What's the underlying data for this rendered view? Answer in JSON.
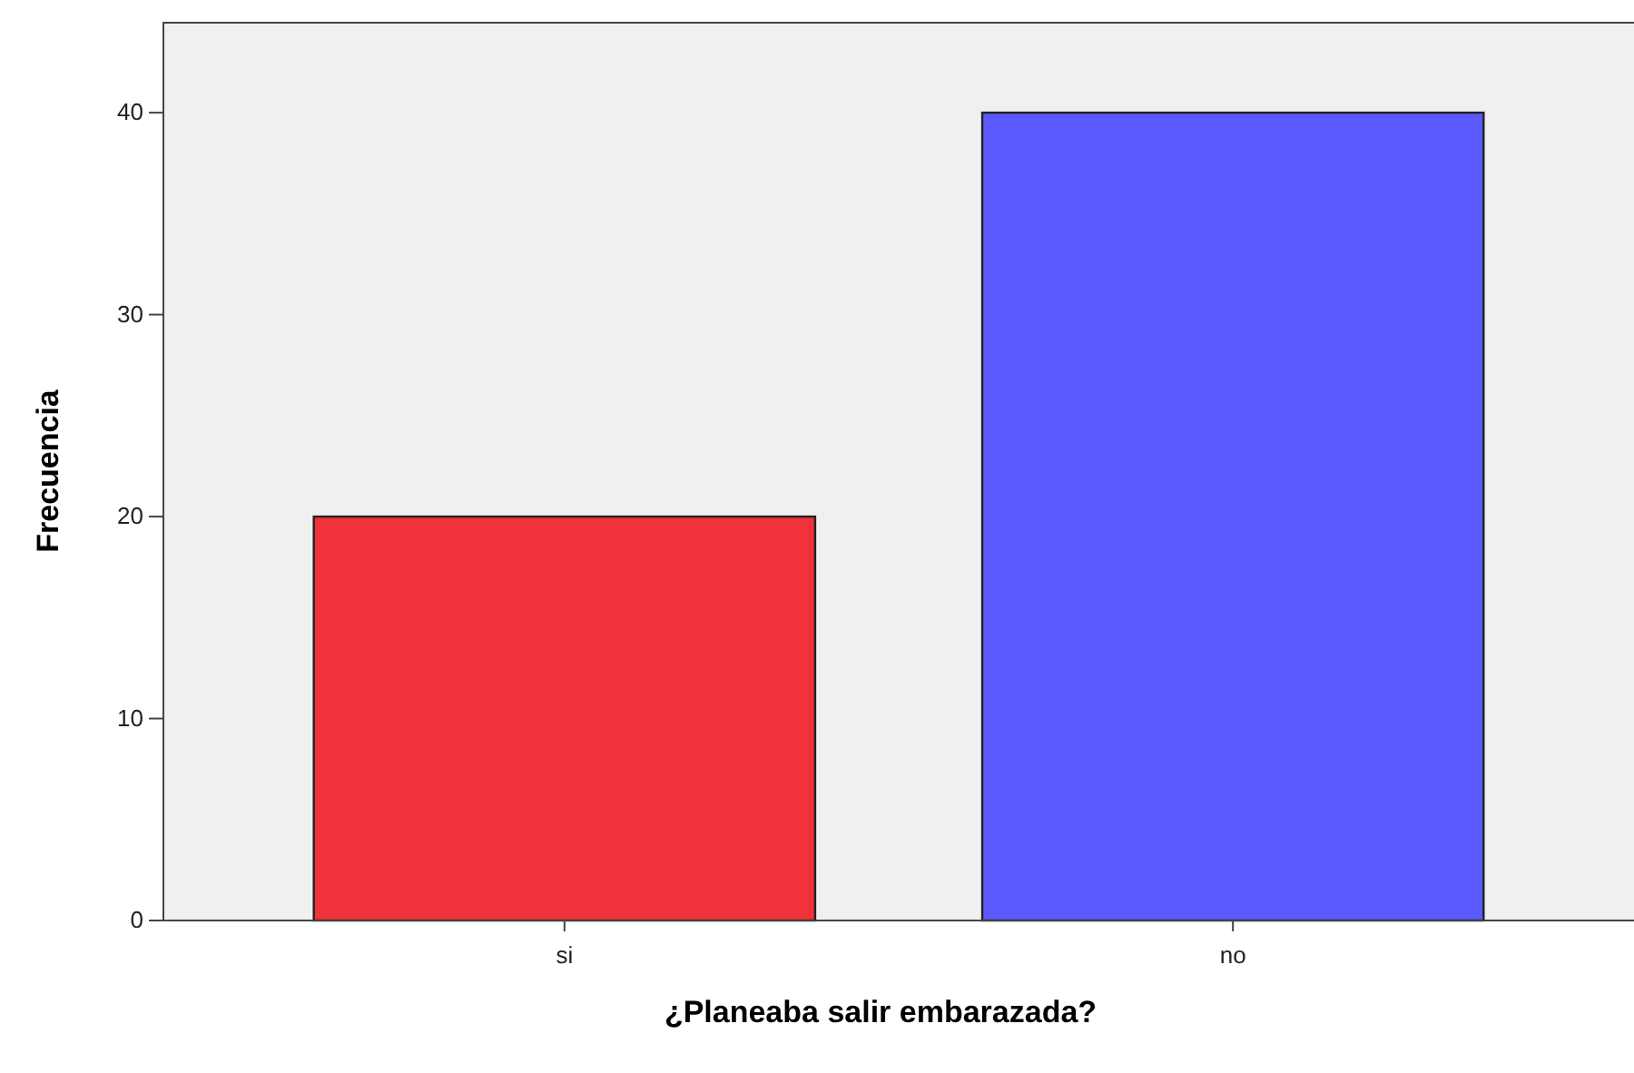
{
  "chart_data": {
    "type": "bar",
    "xlabel": "¿Planeaba salir embarazada?",
    "ylabel": "Frecuencia",
    "categories": [
      "si",
      "no"
    ],
    "values": [
      20,
      40
    ],
    "colors": [
      "#f0323a",
      "#5a5aff"
    ],
    "ylim": [
      0,
      44.5
    ],
    "yticks": [
      0,
      10,
      20,
      30,
      40
    ],
    "grid": false,
    "legend": false
  }
}
